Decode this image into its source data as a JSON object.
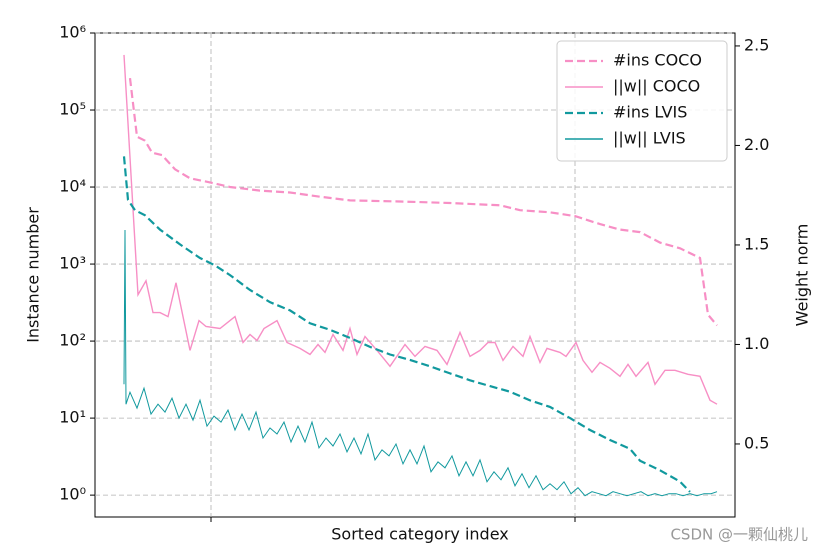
{
  "chart_data": {
    "type": "line",
    "xlabel": "Sorted category index",
    "ylabel": "Instance number",
    "y2label": "Weight norm",
    "watermark": "CSDN @一颗仙桃儿",
    "ylog": true,
    "grid": true,
    "legend": "upper right",
    "xlim": [
      0,
      640
    ],
    "xticks": [
      116,
      480
    ],
    "ylim": [
      0.52,
      1000000
    ],
    "yticks": [
      {
        "value": 1,
        "label": "10⁰"
      },
      {
        "value": 10,
        "label": "10¹"
      },
      {
        "value": 100,
        "label": "10²"
      },
      {
        "value": 1000,
        "label": "10³"
      },
      {
        "value": 10000,
        "label": "10⁴"
      },
      {
        "value": 100000,
        "label": "10⁵"
      },
      {
        "value": 1000000,
        "label": "10⁶"
      }
    ],
    "y2lim": [
      0.133,
      2.565
    ],
    "y2ticks": [
      0.5,
      {
        "value": 1,
        "label": "1.0"
      },
      1.5,
      {
        "value": 2,
        "label": "2.0"
      },
      2.5
    ],
    "series": [
      {
        "name": "#ins COCO",
        "color": "#f78fc5",
        "dashed": true,
        "axis": "y",
        "x": [
          35,
          42,
          50,
          57,
          67,
          80,
          95,
          115,
          135,
          165,
          195,
          225,
          255,
          305,
          355,
          405,
          425,
          455,
          480,
          505,
          525,
          545,
          565,
          585,
          605,
          613,
          622
        ],
        "values": [
          260000,
          45000,
          40000,
          28000,
          26000,
          17000,
          13000,
          11500,
          10000,
          9000,
          8500,
          7500,
          6700,
          6500,
          6200,
          5800,
          5000,
          4700,
          4200,
          3300,
          2800,
          2600,
          1900,
          1600,
          1200,
          220,
          160
        ]
      },
      {
        "name": "||w|| COCO",
        "color": "#f78fc5",
        "dashed": false,
        "axis": "y2",
        "x": [
          29,
          43,
          51,
          58,
          65,
          73,
          81,
          95,
          104,
          111,
          125,
          140,
          148,
          155,
          162,
          169,
          182,
          192,
          205,
          215,
          223,
          230,
          238,
          248,
          255,
          262,
          270,
          282,
          295,
          310,
          320,
          330,
          342,
          352,
          365,
          375,
          385,
          393,
          400,
          408,
          418,
          428,
          435,
          445,
          452,
          465,
          471,
          481,
          488,
          497,
          505,
          515,
          525,
          533,
          541,
          553,
          560,
          570,
          580,
          593,
          605,
          615,
          622
        ],
        "values": [
          2.455,
          1.25,
          1.32,
          1.16,
          1.16,
          1.14,
          1.31,
          0.97,
          1.12,
          1.09,
          1.08,
          1.14,
          1.01,
          1.05,
          1.02,
          1.08,
          1.12,
          1.01,
          0.98,
          0.95,
          1.0,
          0.96,
          1.05,
          0.97,
          1.08,
          0.95,
          1.04,
          0.97,
          0.89,
          1.0,
          0.94,
          0.99,
          0.97,
          0.9,
          1.06,
          0.94,
          0.97,
          1.01,
          1.01,
          0.92,
          0.99,
          0.94,
          1.04,
          0.91,
          0.98,
          0.96,
          0.94,
          1.01,
          0.92,
          0.86,
          0.91,
          0.88,
          0.84,
          0.9,
          0.84,
          0.91,
          0.8,
          0.87,
          0.87,
          0.85,
          0.84,
          0.72,
          0.7
        ]
      },
      {
        "name": "#ins LVIS",
        "color": "#11999e",
        "dashed": true,
        "axis": "y",
        "x": [
          29,
          33,
          40,
          50,
          65,
          85,
          105,
          120,
          135,
          155,
          175,
          195,
          215,
          235,
          255,
          275,
          295,
          315,
          335,
          355,
          375,
          395,
          415,
          435,
          455,
          475,
          495,
          515,
          535,
          545,
          565,
          585,
          595
        ],
        "values": [
          25000,
          6800,
          5000,
          4300,
          2800,
          1800,
          1200,
          960,
          720,
          460,
          320,
          250,
          170,
          140,
          110,
          84,
          67,
          57,
          47,
          38,
          31,
          26,
          22,
          17,
          14,
          10,
          7,
          5.2,
          4,
          2.8,
          2.1,
          1.5,
          1.1
        ]
      },
      {
        "name": "||w|| LVIS",
        "color": "#11999e",
        "dashed": false,
        "axis": "y2",
        "x": [
          29,
          30,
          31,
          35,
          42,
          49,
          56,
          63,
          70,
          77,
          84,
          91,
          98,
          105,
          112,
          119,
          126,
          133,
          140,
          147,
          154,
          161,
          168,
          175,
          182,
          189,
          196,
          203,
          210,
          217,
          224,
          231,
          238,
          245,
          252,
          259,
          266,
          273,
          280,
          287,
          294,
          301,
          308,
          315,
          322,
          329,
          336,
          343,
          350,
          357,
          364,
          371,
          378,
          385,
          392,
          399,
          406,
          413,
          420,
          427,
          434,
          441,
          448,
          455,
          462,
          469,
          476,
          483,
          490,
          497,
          504,
          511,
          518,
          525,
          532,
          539,
          546,
          553,
          560,
          567,
          574,
          581,
          588,
          595,
          602,
          609,
          616,
          622
        ],
        "values": [
          0.8,
          1.575,
          0.7,
          0.76,
          0.68,
          0.78,
          0.65,
          0.7,
          0.66,
          0.73,
          0.63,
          0.7,
          0.62,
          0.72,
          0.59,
          0.64,
          0.61,
          0.67,
          0.57,
          0.65,
          0.57,
          0.66,
          0.53,
          0.58,
          0.55,
          0.61,
          0.51,
          0.59,
          0.51,
          0.61,
          0.48,
          0.53,
          0.49,
          0.55,
          0.46,
          0.53,
          0.45,
          0.55,
          0.42,
          0.47,
          0.44,
          0.5,
          0.4,
          0.47,
          0.4,
          0.49,
          0.36,
          0.41,
          0.38,
          0.44,
          0.34,
          0.41,
          0.34,
          0.42,
          0.31,
          0.36,
          0.32,
          0.38,
          0.29,
          0.35,
          0.28,
          0.34,
          0.27,
          0.3,
          0.27,
          0.31,
          0.25,
          0.28,
          0.24,
          0.26,
          0.25,
          0.24,
          0.26,
          0.25,
          0.24,
          0.25,
          0.26,
          0.24,
          0.25,
          0.24,
          0.25,
          0.25,
          0.24,
          0.25,
          0.24,
          0.25,
          0.25,
          0.26
        ]
      }
    ]
  }
}
